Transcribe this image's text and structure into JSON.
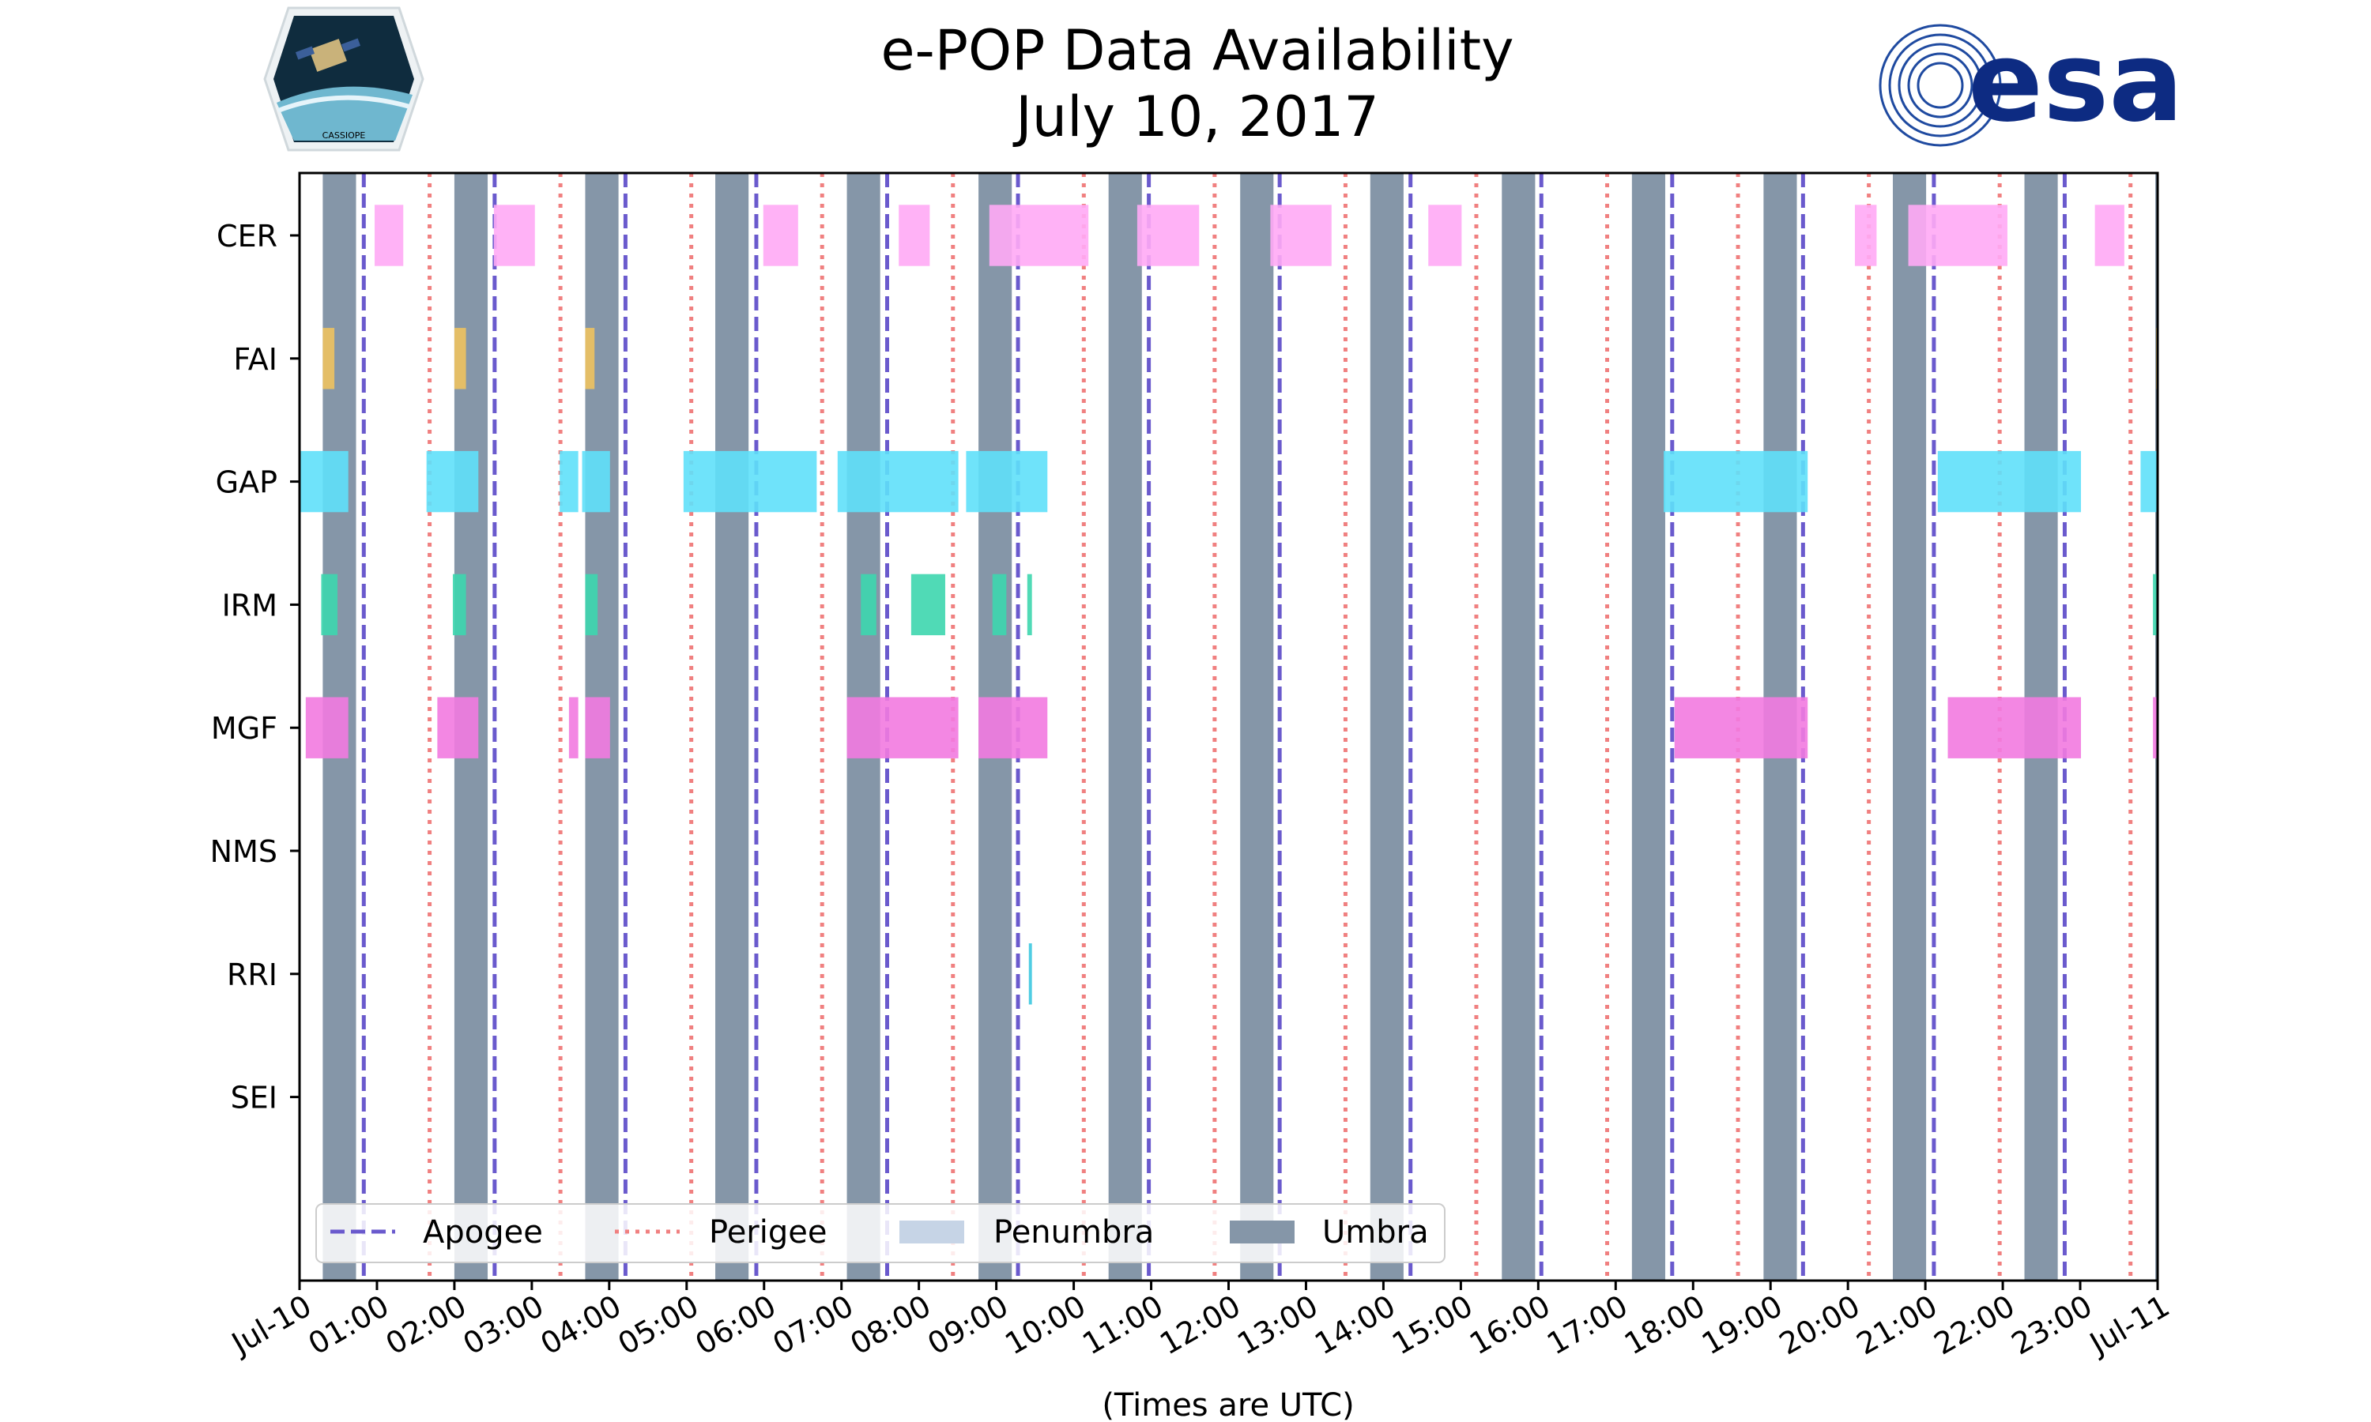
{
  "logos": {
    "left_logo_text": "CASSIOPE",
    "right_logo_text": "esa"
  },
  "chart_data": {
    "type": "timeline",
    "title": "e-POP Data Availability",
    "subtitle": "July 10, 2017",
    "xlabel": "(Times are UTC)",
    "ylabel": "",
    "xlim_hours": [
      0,
      24
    ],
    "x_tick_labels": [
      "Jul-10",
      "01:00",
      "02:00",
      "03:00",
      "04:00",
      "05:00",
      "06:00",
      "07:00",
      "08:00",
      "09:00",
      "10:00",
      "11:00",
      "12:00",
      "13:00",
      "14:00",
      "15:00",
      "16:00",
      "17:00",
      "18:00",
      "19:00",
      "20:00",
      "21:00",
      "22:00",
      "23:00",
      "Jul-11"
    ],
    "instruments": [
      {
        "name": "CER",
        "color": "#ffaaf5",
        "intervals": [
          [
            0.97,
            1.34
          ],
          [
            2.51,
            3.04
          ],
          [
            5.99,
            6.44
          ],
          [
            7.74,
            8.14
          ],
          [
            8.91,
            10.19
          ],
          [
            10.82,
            11.62
          ],
          [
            12.54,
            13.33
          ],
          [
            14.58,
            15.01
          ],
          [
            20.09,
            20.37
          ],
          [
            20.78,
            22.06
          ],
          [
            23.19,
            23.57
          ]
        ]
      },
      {
        "name": "FAI",
        "color": "#eec25f",
        "intervals": [
          [
            0.3,
            0.45
          ],
          [
            2.0,
            2.15
          ],
          [
            3.69,
            3.81
          ],
          [
            23.98,
            24.0
          ]
        ]
      },
      {
        "name": "GAP",
        "color": "#5fe0fa",
        "intervals": [
          [
            0.0,
            0.63
          ],
          [
            1.64,
            2.31
          ],
          [
            3.36,
            3.6
          ],
          [
            3.65,
            4.01
          ],
          [
            4.96,
            6.68
          ],
          [
            6.95,
            8.51
          ],
          [
            8.61,
            9.66
          ],
          [
            17.62,
            19.48
          ],
          [
            21.16,
            23.01
          ],
          [
            23.78,
            24.0
          ]
        ]
      },
      {
        "name": "IRM",
        "color": "#3dd6ae",
        "intervals": [
          [
            0.28,
            0.49
          ],
          [
            1.98,
            2.15
          ],
          [
            3.69,
            3.85
          ],
          [
            7.25,
            7.45
          ],
          [
            7.9,
            8.34
          ],
          [
            8.95,
            9.13
          ],
          [
            9.4,
            9.46
          ],
          [
            23.94,
            24.0
          ]
        ]
      },
      {
        "name": "MGF",
        "color": "#f27ae0",
        "intervals": [
          [
            0.08,
            0.63
          ],
          [
            1.78,
            2.31
          ],
          [
            3.48,
            3.6
          ],
          [
            3.69,
            4.01
          ],
          [
            7.07,
            8.51
          ],
          [
            8.77,
            9.66
          ],
          [
            17.76,
            19.48
          ],
          [
            21.29,
            23.01
          ],
          [
            23.94,
            24.0
          ]
        ]
      },
      {
        "name": "NMS",
        "color": "#cccccc",
        "intervals": []
      },
      {
        "name": "RRI",
        "color": "#3cc8e0",
        "intervals": [
          [
            9.42,
            9.46
          ]
        ]
      },
      {
        "name": "SEI",
        "color": "#cccccc",
        "intervals": []
      }
    ],
    "umbra": {
      "color": "#8596a8",
      "intervals": [
        [
          0.3,
          0.73
        ],
        [
          2.0,
          2.43
        ],
        [
          3.69,
          4.12
        ],
        [
          5.37,
          5.8
        ],
        [
          7.07,
          7.5
        ],
        [
          8.77,
          9.2
        ],
        [
          10.45,
          10.88
        ],
        [
          12.15,
          12.58
        ],
        [
          13.83,
          14.26
        ],
        [
          15.53,
          15.96
        ],
        [
          17.21,
          17.64
        ],
        [
          18.91,
          19.34
        ],
        [
          20.58,
          21.01
        ],
        [
          22.28,
          22.71
        ],
        [
          23.97,
          24.0
        ]
      ]
    },
    "apogee": {
      "color": "#6a5acd",
      "times": [
        0.83,
        2.52,
        4.21,
        5.9,
        7.59,
        9.28,
        10.97,
        12.66,
        14.35,
        16.04,
        17.73,
        19.42,
        21.11,
        22.8
      ]
    },
    "perigee": {
      "color": "#f08080",
      "times": [
        1.68,
        3.37,
        5.06,
        6.75,
        8.44,
        10.13,
        11.82,
        13.51,
        15.2,
        16.89,
        18.58,
        20.27,
        21.96,
        23.65
      ]
    },
    "legend": {
      "placement": "bottom-left",
      "entries": [
        "Apogee",
        "Perigee",
        "Penumbra",
        "Umbra"
      ],
      "penumbra_color": "#c6d4e6"
    }
  }
}
